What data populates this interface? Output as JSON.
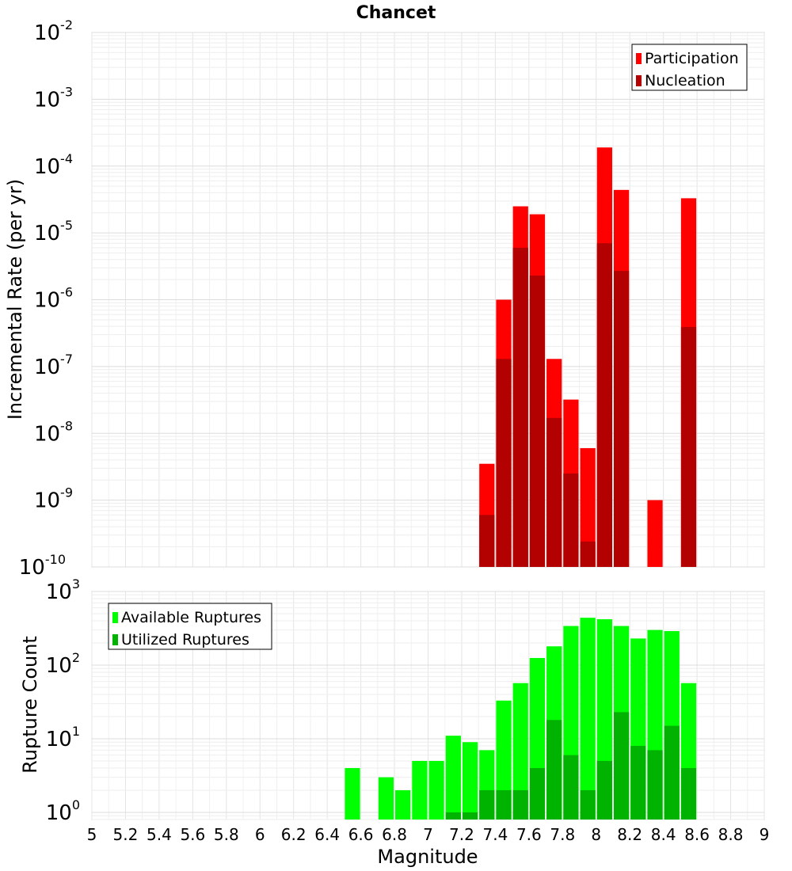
{
  "chart_data": [
    {
      "type": "bar",
      "title": "Chancet",
      "xlabel": "",
      "ylabel": "Incremental Rate (per yr)",
      "yscale": "log",
      "ylim": [
        1e-10,
        0.01
      ],
      "xlim": [
        5,
        9
      ],
      "bin_width": 0.1,
      "grid": true,
      "legend_position": "top-right",
      "colors": {
        "Participation": "#ff0000",
        "Nucleation": "#b30000"
      },
      "x": [
        7.35,
        7.45,
        7.55,
        7.65,
        7.75,
        7.85,
        7.95,
        8.05,
        8.15,
        8.35,
        8.55
      ],
      "series": [
        {
          "name": "Participation",
          "values": [
            3.5e-09,
            1e-06,
            2.5e-05,
            1.9e-05,
            1.3e-07,
            3.2e-08,
            6e-09,
            0.00019,
            4.4e-05,
            1e-09,
            3.3e-05
          ]
        },
        {
          "name": "Nucleation",
          "values": [
            6e-10,
            1.3e-07,
            6e-06,
            2.3e-06,
            1.7e-08,
            2.5e-09,
            2.4e-10,
            7e-06,
            2.7e-06,
            null,
            3.9e-07
          ]
        }
      ]
    },
    {
      "type": "bar",
      "title": "",
      "xlabel": "Magnitude",
      "ylabel": "Rupture Count",
      "yscale": "log",
      "ylim": [
        0.8,
        1000
      ],
      "xlim": [
        5,
        9
      ],
      "bin_width": 0.1,
      "grid": true,
      "legend_position": "top-left",
      "colors": {
        "Available Ruptures": "#00ff00",
        "Utilized Ruptures": "#00b300"
      },
      "xticks": [
        "5",
        "5.2",
        "5.4",
        "5.6",
        "5.8",
        "6",
        "6.2",
        "6.4",
        "6.6",
        "6.8",
        "7",
        "7.2",
        "7.4",
        "7.6",
        "7.8",
        "8",
        "8.2",
        "8.4",
        "8.6",
        "8.8",
        "9"
      ],
      "x": [
        6.55,
        6.75,
        6.85,
        6.95,
        7.05,
        7.15,
        7.25,
        7.35,
        7.45,
        7.55,
        7.65,
        7.75,
        7.85,
        7.95,
        8.05,
        8.15,
        8.25,
        8.35,
        8.45,
        8.55
      ],
      "series": [
        {
          "name": "Available Ruptures",
          "values": [
            4,
            3,
            2,
            5,
            5,
            11,
            9,
            7,
            33,
            57,
            125,
            180,
            340,
            440,
            420,
            340,
            230,
            300,
            290,
            57
          ]
        },
        {
          "name": "Utilized Ruptures",
          "values": [
            null,
            null,
            null,
            null,
            null,
            1,
            1,
            2,
            2,
            2,
            4,
            18,
            6,
            2,
            5,
            23,
            8,
            7,
            15,
            4
          ]
        }
      ]
    }
  ]
}
